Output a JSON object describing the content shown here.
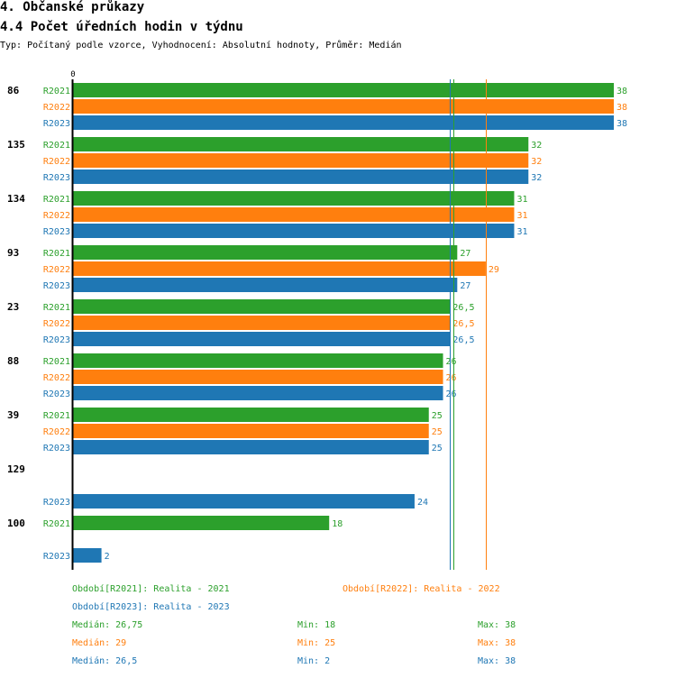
{
  "header": {
    "section": "4. Občanské průkazy",
    "subsection": "4.4 Počet úředních hodin v týdnu",
    "description": "Typ: Počítaný podle vzorce, Vyhodnocení: Absolutní hodnoty, Průměr: Medián"
  },
  "colors": {
    "R2021": "#2ca02c",
    "R2022": "#ff7f0e",
    "R2023": "#1f77b4"
  },
  "chart_data": {
    "type": "bar",
    "orientation": "horizontal",
    "axis_zero_label": "0",
    "xlim": [
      0,
      38
    ],
    "series_names": [
      "R2021",
      "R2022",
      "R2023"
    ],
    "groups": [
      {
        "id": "86",
        "bars": [
          {
            "series": "R2021",
            "value": 38,
            "label": "38"
          },
          {
            "series": "R2022",
            "value": 38,
            "label": "38"
          },
          {
            "series": "R2023",
            "value": 38,
            "label": "38"
          }
        ]
      },
      {
        "id": "135",
        "bars": [
          {
            "series": "R2021",
            "value": 32,
            "label": "32"
          },
          {
            "series": "R2022",
            "value": 32,
            "label": "32"
          },
          {
            "series": "R2023",
            "value": 32,
            "label": "32"
          }
        ]
      },
      {
        "id": "134",
        "bars": [
          {
            "series": "R2021",
            "value": 31,
            "label": "31"
          },
          {
            "series": "R2022",
            "value": 31,
            "label": "31"
          },
          {
            "series": "R2023",
            "value": 31,
            "label": "31"
          }
        ]
      },
      {
        "id": "93",
        "bars": [
          {
            "series": "R2021",
            "value": 27,
            "label": "27"
          },
          {
            "series": "R2022",
            "value": 29,
            "label": "29"
          },
          {
            "series": "R2023",
            "value": 27,
            "label": "27"
          }
        ]
      },
      {
        "id": "23",
        "bars": [
          {
            "series": "R2021",
            "value": 26.5,
            "label": "26,5"
          },
          {
            "series": "R2022",
            "value": 26.5,
            "label": "26,5"
          },
          {
            "series": "R2023",
            "value": 26.5,
            "label": "26,5"
          }
        ]
      },
      {
        "id": "88",
        "bars": [
          {
            "series": "R2021",
            "value": 26,
            "label": "26"
          },
          {
            "series": "R2022",
            "value": 26,
            "label": "26"
          },
          {
            "series": "R2023",
            "value": 26,
            "label": "26"
          }
        ]
      },
      {
        "id": "39",
        "bars": [
          {
            "series": "R2021",
            "value": 25,
            "label": "25"
          },
          {
            "series": "R2022",
            "value": 25,
            "label": "25"
          },
          {
            "series": "R2023",
            "value": 25,
            "label": "25"
          }
        ]
      },
      {
        "id": "129",
        "bars": [
          {
            "series": "R2023",
            "value": 24,
            "label": "24"
          }
        ]
      },
      {
        "id": "100",
        "bars": [
          {
            "series": "R2021",
            "value": 18,
            "label": "18"
          },
          {
            "series": "R2023",
            "value": 2,
            "label": "2"
          }
        ]
      }
    ],
    "median_lines": [
      {
        "series": "R2021",
        "value": 26.75
      },
      {
        "series": "R2022",
        "value": 29
      },
      {
        "series": "R2023",
        "value": 26.5
      }
    ]
  },
  "legend": {
    "period_r2021": "Období[R2021]: Realita - 2021",
    "period_r2022": "Období[R2022]: Realita - 2022",
    "period_r2023": "Období[R2023]: Realita - 2023",
    "stats": [
      {
        "series": "R2021",
        "median": "Medián: 26,75",
        "min": "Min: 18",
        "max": "Max: 38"
      },
      {
        "series": "R2022",
        "median": "Medián: 29",
        "min": "Min: 25",
        "max": "Max: 38"
      },
      {
        "series": "R2023",
        "median": "Medián: 26,5",
        "min": "Min: 2",
        "max": "Max: 38"
      }
    ]
  }
}
